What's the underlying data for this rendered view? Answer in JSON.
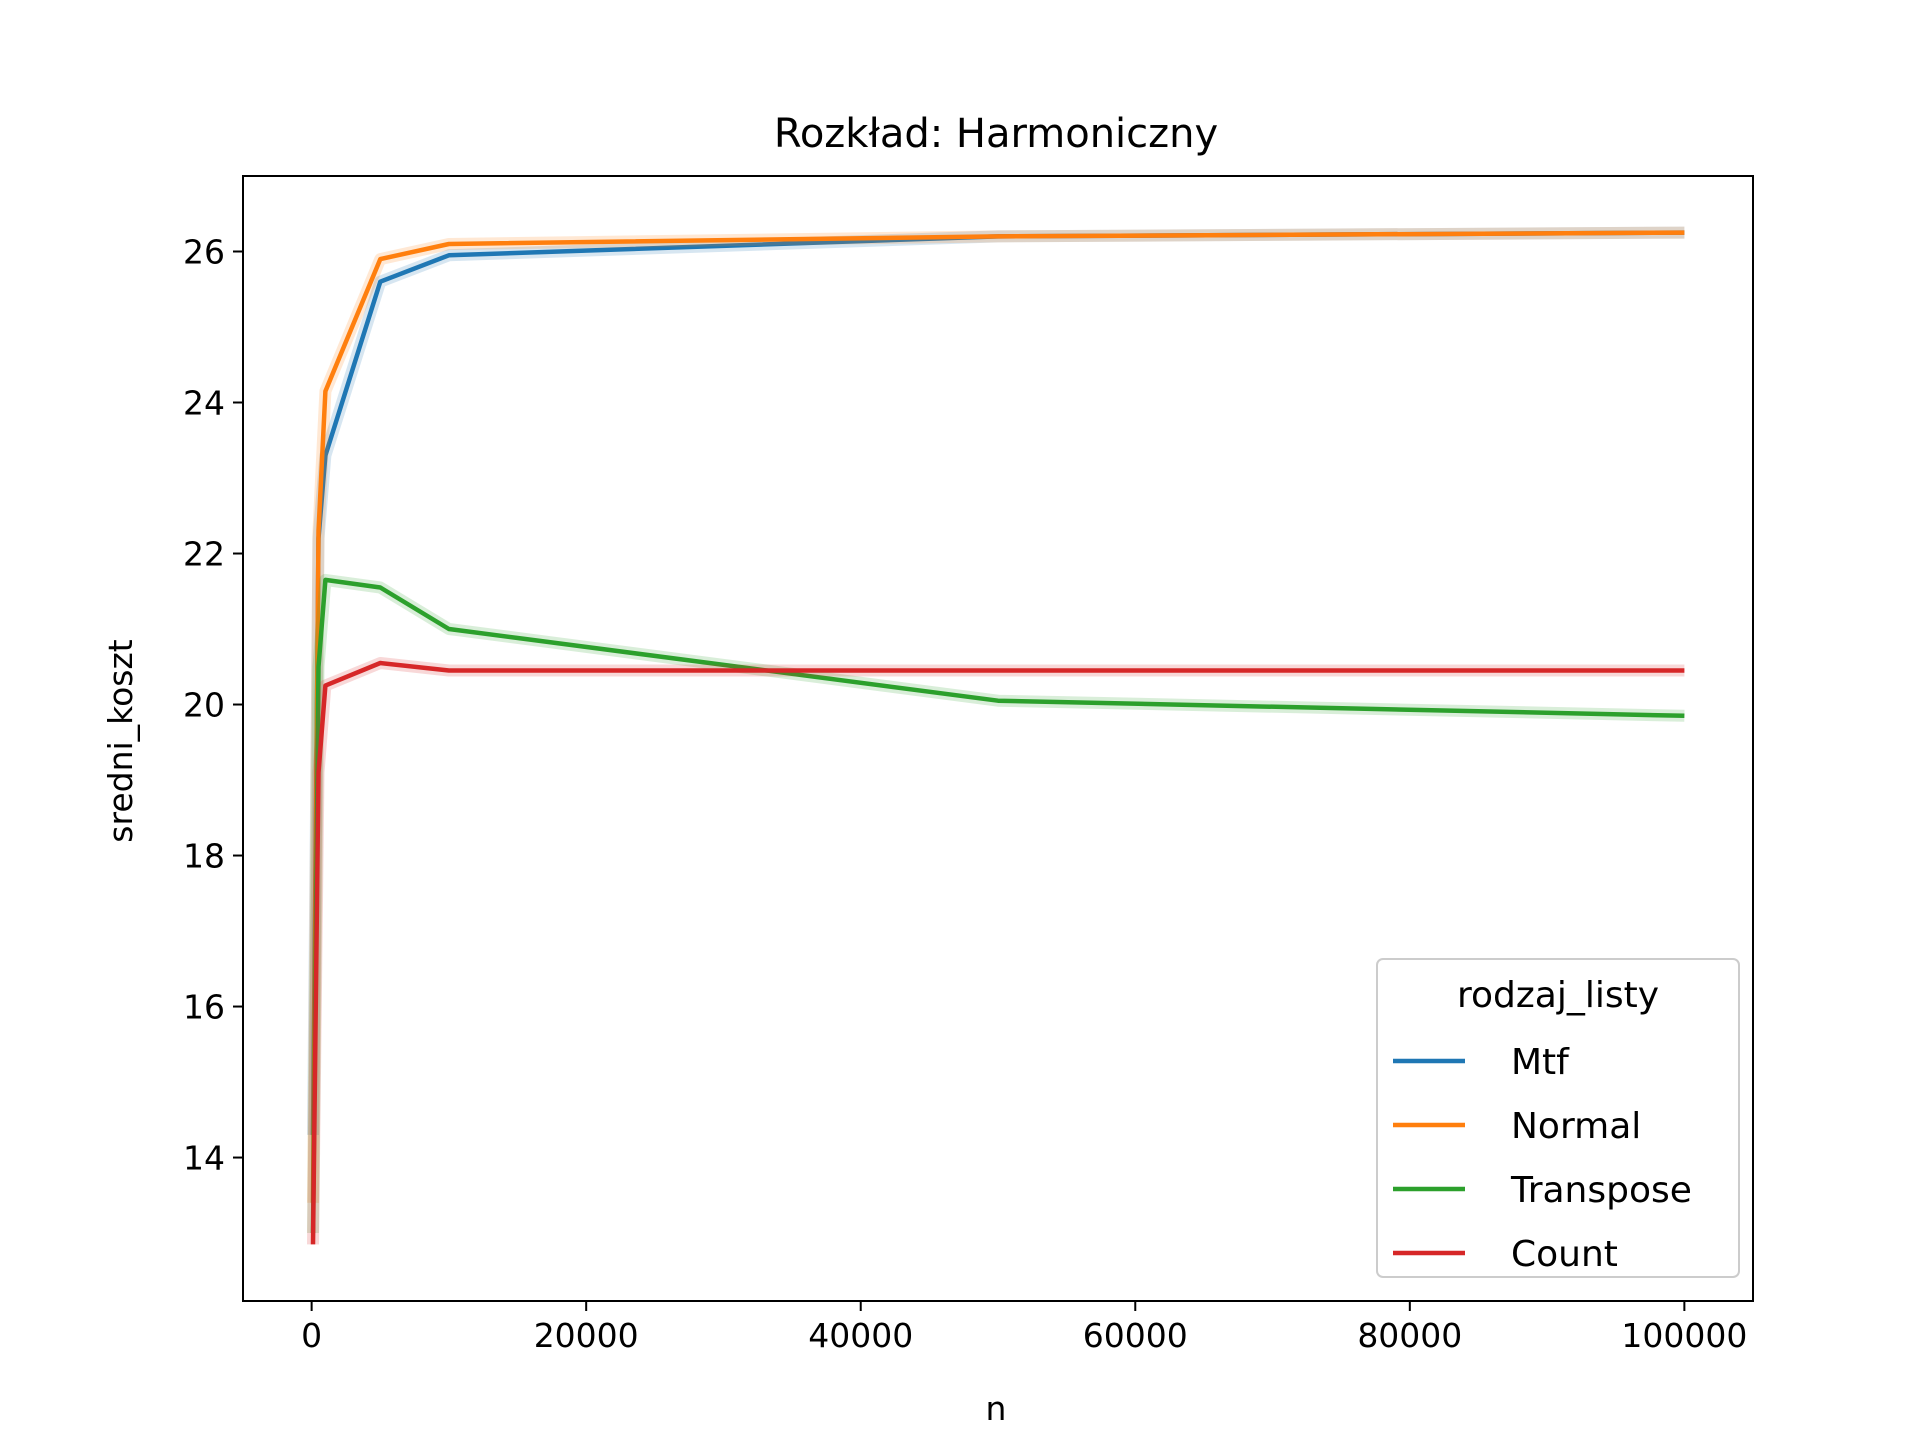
{
  "chart_data": {
    "type": "line",
    "title": "Rozkład: Harmoniczny",
    "xlabel": "n",
    "ylabel": "sredni_koszt",
    "xlim": [
      -5000,
      105000
    ],
    "ylim": [
      12.1,
      27.0
    ],
    "xticks": [
      0,
      20000,
      40000,
      60000,
      80000,
      100000
    ],
    "xtick_labels": [
      "0",
      "20000",
      "40000",
      "60000",
      "80000",
      "100000"
    ],
    "yticks": [
      14,
      16,
      18,
      20,
      22,
      24,
      26
    ],
    "ytick_labels": [
      "14",
      "16",
      "18",
      "20",
      "22",
      "24",
      "26"
    ],
    "grid": false,
    "legend": {
      "title": "rodzaj_listy",
      "placement": "lower-right"
    },
    "x": [
      100,
      500,
      1000,
      5000,
      10000,
      50000,
      100000
    ],
    "series": [
      {
        "name": "Mtf",
        "color": "#1f77b4",
        "values": [
          14.3,
          22.2,
          23.3,
          25.6,
          25.95,
          26.2,
          26.25
        ]
      },
      {
        "name": "Normal",
        "color": "#ff7f0e",
        "values": [
          13.4,
          22.3,
          24.15,
          25.9,
          26.1,
          26.2,
          26.25
        ]
      },
      {
        "name": "Transpose",
        "color": "#2ca02c",
        "values": [
          13.0,
          20.5,
          21.65,
          21.55,
          21.0,
          20.05,
          19.85
        ]
      },
      {
        "name": "Count",
        "color": "#d62728",
        "values": [
          12.85,
          19.1,
          20.25,
          20.55,
          20.45,
          20.45,
          20.45
        ]
      }
    ]
  }
}
